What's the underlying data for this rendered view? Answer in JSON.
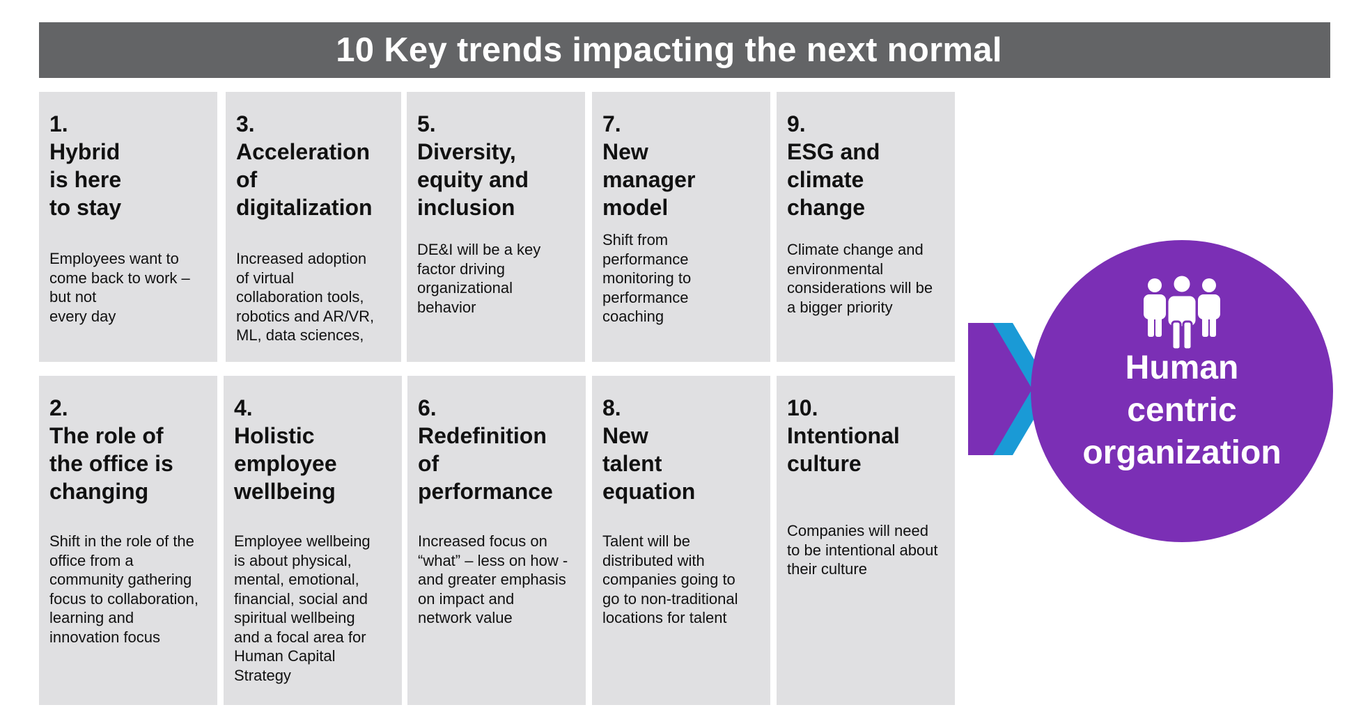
{
  "title": "10 Key trends impacting the next normal",
  "colors": {
    "banner": "#636466",
    "card": "#e0e0e2",
    "hub": "#7b2fb5",
    "arrow_purple": "#7b2fb5",
    "arrow_blue": "#1a9ad6"
  },
  "trends": [
    {
      "number": "1.",
      "title": "Hybrid\nis here\nto stay",
      "description": "Employees want to\ncome back to work –\nbut not\nevery day"
    },
    {
      "number": "3.",
      "title": "Acceleration\nof\ndigitalization",
      "description": "Increased adoption\nof virtual\ncollaboration tools,\nrobotics and AR/VR,\nML, data sciences,"
    },
    {
      "number": "5.",
      "title": "Diversity,\nequity and\ninclusion",
      "description": "DE&I will be a key\nfactor driving\norganizational\nbehavior"
    },
    {
      "number": "7.",
      "title": "New\nmanager\nmodel",
      "description": "Shift from\nperformance\nmonitoring to\nperformance\ncoaching"
    },
    {
      "number": "9.",
      "title": "ESG and\nclimate\nchange",
      "description": "Climate change and\nenvironmental\nconsiderations will be\na bigger priority"
    },
    {
      "number": "2.",
      "title": "The role of\nthe office is\nchanging",
      "description": "Shift in the role of the\noffice from a\ncommunity gathering\nfocus to collaboration,\nlearning and\ninnovation focus"
    },
    {
      "number": "4.",
      "title": "Holistic\nemployee\nwellbeing",
      "description": "Employee wellbeing\nis about physical,\nmental, emotional,\nfinancial, social and\nspiritual wellbeing\nand a focal area for\nHuman Capital\nStrategy"
    },
    {
      "number": "6.",
      "title": "Redefinition\nof\nperformance",
      "description": "Increased focus on\n“what” – less on how -\nand greater emphasis\non impact and\nnetwork value"
    },
    {
      "number": "8.",
      "title": "New\ntalent\nequation",
      "description": "Talent will be\ndistributed with\ncompanies going to\ngo to non-traditional\nlocations for talent"
    },
    {
      "number": "10.",
      "title": "Intentional\nculture",
      "description": "Companies will need\nto be intentional about\ntheir culture"
    }
  ],
  "hub": {
    "label": "Human\ncentric\norganization",
    "icon": "people-group-icon"
  },
  "connector_icon": "double-chevron-arrow-icon"
}
